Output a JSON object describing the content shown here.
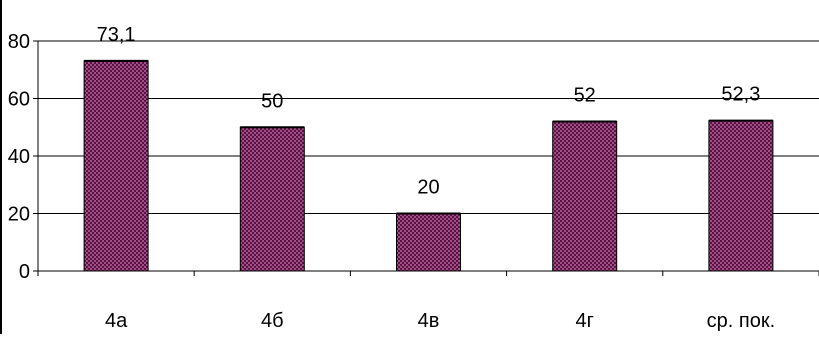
{
  "chart_data": {
    "type": "bar",
    "title": "",
    "xlabel": "",
    "ylabel": "",
    "categories": [
      "4а",
      "4б",
      "4в",
      "4г",
      "ср. пок."
    ],
    "values": [
      73.1,
      50,
      20,
      52,
      52.3
    ],
    "data_labels": [
      "73,1",
      "50",
      "20",
      "52",
      "52,3"
    ],
    "ylim": [
      0,
      80
    ],
    "yticks": [
      0,
      20,
      40,
      60,
      80
    ],
    "grid": true,
    "legend": "none",
    "colors": {
      "bar_fill": "#a0507f",
      "bar_pattern_dark": "#5a1048",
      "bar_stroke": "#000000",
      "grid": "#000000",
      "axis": "#000000"
    }
  }
}
